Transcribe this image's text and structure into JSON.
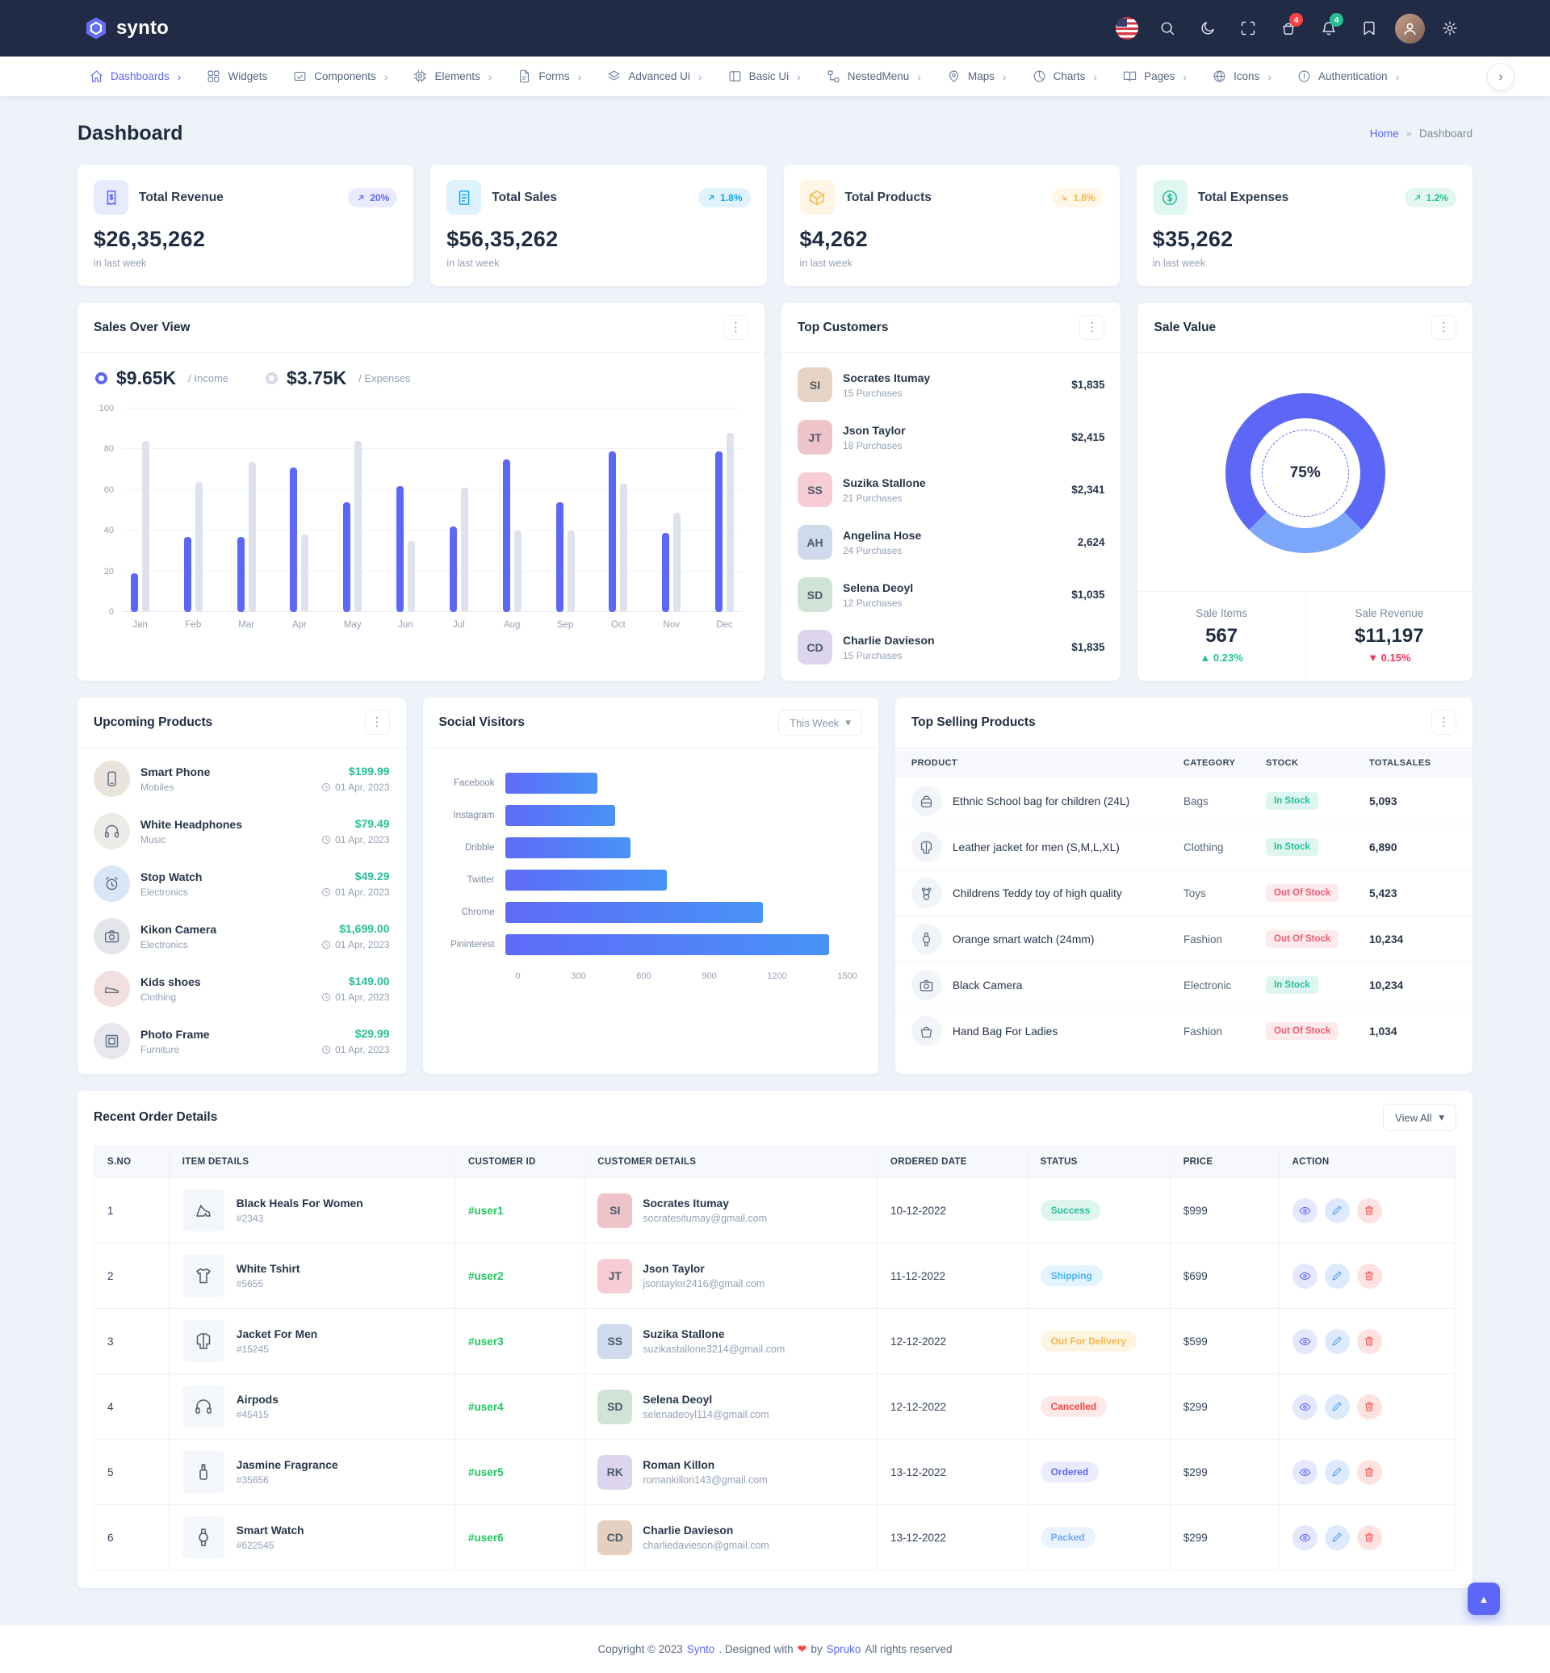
{
  "colors": {
    "primary": "#5c67f7",
    "secondary": "#0ea5e9",
    "warning": "#f5b849",
    "success": "#26bf94",
    "danger": "#fb4242",
    "income_bar": "#5c67f7",
    "expenses_bar": "#dde2ec",
    "topbar_bg": "#212b46",
    "cart_badge_bg": "#fb4242",
    "notif_badge_bg": "#26bf94"
  },
  "topbar": {
    "logo": "synto",
    "cart_badge": "4",
    "notification_badge": "4",
    "actions": [
      {
        "type": "flag",
        "name": "us-flag-icon"
      },
      {
        "type": "icon",
        "icon": "search",
        "name": "search-icon"
      },
      {
        "type": "icon",
        "icon": "moon",
        "name": "dark-mode-icon"
      },
      {
        "type": "icon",
        "icon": "fullscreen",
        "name": "fullscreen-icon"
      },
      {
        "type": "icon",
        "icon": "basket",
        "name": "cart-icon",
        "badge": "4",
        "badge_color": "#fb4242"
      },
      {
        "type": "icon",
        "icon": "bell",
        "name": "notifications-icon",
        "badge": "4",
        "badge_color": "#26bf94"
      },
      {
        "type": "icon",
        "icon": "bookmark",
        "name": "bookmark-icon"
      },
      {
        "type": "avatar",
        "name": "user-avatar"
      },
      {
        "type": "icon",
        "icon": "gear",
        "name": "settings-icon"
      }
    ]
  },
  "menu": {
    "items": [
      {
        "label": "Dashboards",
        "icon": "home",
        "chevron": true,
        "active": true
      },
      {
        "label": "Widgets",
        "icon": "widgets",
        "chevron": false,
        "active": false
      },
      {
        "label": "Components",
        "icon": "components",
        "chevron": true,
        "active": false
      },
      {
        "label": "Elements",
        "icon": "elements",
        "chevron": true,
        "active": false
      },
      {
        "label": "Forms",
        "icon": "forms",
        "chevron": true,
        "active": false
      },
      {
        "label": "Advanced Ui",
        "icon": "advanced",
        "chevron": true,
        "active": false
      },
      {
        "label": "Basic Ui",
        "icon": "basic",
        "chevron": true,
        "active": false
      },
      {
        "label": "NestedMenu",
        "icon": "nested",
        "chevron": true,
        "active": false
      },
      {
        "label": "Maps",
        "icon": "maps",
        "chevron": true,
        "active": false
      },
      {
        "label": "Charts",
        "icon": "charts",
        "chevron": true,
        "active": false
      },
      {
        "label": "Pages",
        "icon": "pages",
        "chevron": true,
        "active": false
      },
      {
        "label": "Icons",
        "icon": "iconsmenu",
        "chevron": true,
        "active": false
      },
      {
        "label": "Authentication",
        "icon": "auth",
        "chevron": true,
        "active": false
      }
    ]
  },
  "page": {
    "title": "Dashboard",
    "breadcrumb": [
      "Home",
      "Dashboard"
    ]
  },
  "stats": [
    {
      "title": "Total Revenue",
      "value": "$26,35,262",
      "note": "in last week",
      "badge": "20%",
      "trend": "up",
      "color": "#5c67f7",
      "icon": "receipt"
    },
    {
      "title": "Total Sales",
      "value": "$56,35,262",
      "note": "in last week",
      "badge": "1.8%",
      "trend": "up",
      "color": "#0ea5e9",
      "icon": "invoice"
    },
    {
      "title": "Total Products",
      "value": "$4,262",
      "note": "in last week",
      "badge": "1.8%",
      "trend": "down",
      "color": "#f5b849",
      "icon": "box"
    },
    {
      "title": "Total Expenses",
      "value": "$35,262",
      "note": "in last week",
      "badge": "1.2%",
      "trend": "up",
      "color": "#26bf94",
      "icon": "dollar"
    }
  ],
  "sales_overview": {
    "title": "Sales Over View",
    "legend": [
      {
        "value": "$9.65K",
        "label": "/ Income",
        "dot": "#5c67f7"
      },
      {
        "value": "$3.75K",
        "label": "/ Expenses",
        "dot": "#d4d9e4"
      }
    ],
    "chart_data": {
      "type": "bar",
      "categories": [
        "Jan",
        "Feb",
        "Mar",
        "Apr",
        "May",
        "Jun",
        "Jul",
        "Aug",
        "Sep",
        "Oct",
        "Nov",
        "Dec"
      ],
      "series": [
        {
          "name": "Income",
          "color": "#5c67f7",
          "values": [
            19,
            37,
            37,
            71,
            54,
            62,
            42,
            75,
            54,
            79,
            39,
            79
          ]
        },
        {
          "name": "Expenses",
          "color": "#dde2ec",
          "values": [
            84,
            64,
            74,
            38,
            84,
            35,
            61,
            40,
            40,
            63,
            49,
            88
          ]
        }
      ],
      "ylim": [
        0,
        100
      ],
      "yticks": [
        0,
        20,
        40,
        60,
        80,
        100
      ],
      "grid": true,
      "legend_position": "top"
    }
  },
  "top_customers": {
    "title": "Top Customers",
    "items": [
      {
        "name": "Socrates Itumay",
        "purchases": "15 Purchases",
        "amount": "$1,835"
      },
      {
        "name": "Json Taylor",
        "purchases": "18 Purchases",
        "amount": "$2,415"
      },
      {
        "name": "Suzika Stallone",
        "purchases": "21 Purchases",
        "amount": "$2,341"
      },
      {
        "name": "Angelina Hose",
        "purchases": "24 Purchases",
        "amount": "2,624"
      },
      {
        "name": "Selena Deoyl",
        "purchases": "12 Purchases",
        "amount": "$1,035"
      },
      {
        "name": "Charlie Davieson",
        "purchases": "15 Purchases",
        "amount": "$1,835"
      }
    ]
  },
  "sale_value": {
    "title": "Sale Value",
    "chart_data": {
      "type": "donut",
      "label": "75%",
      "value": 75,
      "segments": [
        {
          "name": "primary",
          "value": 75,
          "color": "#5c67f7"
        },
        {
          "name": "secondary",
          "value": 25,
          "color": "#7ba6f9"
        }
      ]
    },
    "stats": [
      {
        "label": "Sale Items",
        "value": "567",
        "delta": "0.23%",
        "direction": "up"
      },
      {
        "label": "Sale Revenue",
        "value": "$11,197",
        "delta": "0.15%",
        "direction": "down"
      }
    ]
  },
  "upcoming_products": {
    "title": "Upcoming Products",
    "items": [
      {
        "name": "Smart Phone",
        "category": "Mobiles",
        "price": "$199.99",
        "date": "01 Apr, 2023",
        "icon": "phone",
        "tint": "#e9e3dc"
      },
      {
        "name": "White Headphones",
        "category": "Music",
        "price": "$79.49",
        "date": "01 Apr, 2023",
        "icon": "headphones",
        "tint": "#edebe7"
      },
      {
        "name": "Stop Watch",
        "category": "Electronics",
        "price": "$49.29",
        "date": "01 Apr, 2023",
        "icon": "alarm",
        "tint": "#d8e6f8"
      },
      {
        "name": "Kikon Camera",
        "category": "Electronics",
        "price": "$1,699.00",
        "date": "01 Apr, 2023",
        "icon": "camera",
        "tint": "#e3e5e9"
      },
      {
        "name": "Kids shoes",
        "category": "Clothing",
        "price": "$149.00",
        "date": "01 Apr, 2023",
        "icon": "shoe",
        "tint": "#f2dfdf"
      },
      {
        "name": "Photo Frame",
        "category": "Furniture",
        "price": "$29.99",
        "date": "01 Apr, 2023",
        "icon": "frame",
        "tint": "#e8e7ee"
      }
    ]
  },
  "social_visitors": {
    "title": "Social Visitors",
    "range": "This Week",
    "chart_data": {
      "type": "bar",
      "orientation": "horizontal",
      "categories": [
        "Facebook",
        "Instagram",
        "Dribble",
        "Twitter",
        "Chrome",
        "Pininterest"
      ],
      "values": [
        395,
        470,
        535,
        690,
        1100,
        1380
      ],
      "xlim": [
        0,
        1500
      ],
      "xticks": [
        0,
        300,
        600,
        900,
        1200,
        1500
      ]
    }
  },
  "top_selling": {
    "title": "Top Selling Products",
    "headers": [
      "PRODUCT",
      "CATEGORY",
      "STOCK",
      "TOTALSALES"
    ],
    "rows": [
      {
        "product": "Ethnic School bag for children (24L)",
        "icon": "schoolbag",
        "category": "Bags",
        "stock": "In Stock",
        "total": "5,093"
      },
      {
        "product": "Leather jacket for men (S,M,L,XL)",
        "icon": "jacket",
        "category": "Clothing",
        "stock": "In Stock",
        "total": "6,890"
      },
      {
        "product": "Childrens Teddy toy of high quality",
        "icon": "teddy",
        "category": "Toys",
        "stock": "Out Of Stock",
        "total": "5,423"
      },
      {
        "product": "Orange smart watch (24mm)",
        "icon": "watch",
        "category": "Fashion",
        "stock": "Out Of Stock",
        "total": "10,234"
      },
      {
        "product": "Black Camera",
        "icon": "camera",
        "category": "Electronic",
        "stock": "In Stock",
        "total": "10,234"
      },
      {
        "product": "Hand Bag For Ladies",
        "icon": "handbag",
        "category": "Fashion",
        "stock": "Out Of Stock",
        "total": "1,034"
      }
    ]
  },
  "recent_orders": {
    "title": "Recent Order Details",
    "view_all": "View All",
    "headers": [
      "S.NO",
      "ITEM DETAILS",
      "CUSTOMER ID",
      "CUSTOMER DETAILS",
      "ORDERED DATE",
      "STATUS",
      "PRICE",
      "ACTION"
    ],
    "rows": [
      {
        "sno": "1",
        "item": "Black Heals For Women",
        "code": "#2343",
        "icon": "heels",
        "customer_id": "#user1",
        "customer": "Socrates Itumay",
        "email": "socratesitumay@gmail.com",
        "date": "10-12-2022",
        "status": "Success",
        "price": "$999"
      },
      {
        "sno": "2",
        "item": "White Tshirt",
        "code": "#5655",
        "icon": "tshirt",
        "customer_id": "#user2",
        "customer": "Json Taylor",
        "email": "jsontaylor2416@gmail.com",
        "date": "11-12-2022",
        "status": "Shipping",
        "price": "$699"
      },
      {
        "sno": "3",
        "item": "Jacket For Men",
        "code": "#15245",
        "icon": "jacket",
        "customer_id": "#user3",
        "customer": "Suzika Stallone",
        "email": "suzikastallone3214@gmail.com",
        "date": "12-12-2022",
        "status": "Out For Delivery",
        "price": "$599"
      },
      {
        "sno": "4",
        "item": "Airpods",
        "code": "#45415",
        "icon": "headphones",
        "customer_id": "#user4",
        "customer": "Selena Deoyl",
        "email": "selenadeoyl114@gmail.com",
        "date": "12-12-2022",
        "status": "Cancelled",
        "price": "$299"
      },
      {
        "sno": "5",
        "item": "Jasmine Fragrance",
        "code": "#35656",
        "icon": "perfume",
        "customer_id": "#user5",
        "customer": "Roman Killon",
        "email": "romankillon143@gmail.com",
        "date": "13-12-2022",
        "status": "Ordered",
        "price": "$299"
      },
      {
        "sno": "6",
        "item": "Smart Watch",
        "code": "#622545",
        "icon": "watch",
        "customer_id": "#user6",
        "customer": "Charlie Davieson",
        "email": "charliedavieson@gmail.com",
        "date": "13-12-2022",
        "status": "Packed",
        "price": "$299"
      }
    ]
  },
  "badge_styles": {
    "Success": {
      "text": "#26bf94",
      "bg": "rgba(38,191,148,0.15)"
    },
    "Shipping": {
      "text": "#49b6f5",
      "bg": "rgba(73,182,245,0.15)"
    },
    "Out For Delivery": {
      "text": "#f5b849",
      "bg": "rgba(245,184,73,0.16)"
    },
    "Cancelled": {
      "text": "#fb4242",
      "bg": "rgba(251,66,66,0.12)"
    },
    "Ordered": {
      "text": "#5c67f7",
      "bg": "rgba(92,103,247,0.13)"
    },
    "Packed": {
      "text": "#6fa8f5",
      "bg": "rgba(111,168,245,0.15)"
    },
    "In Stock": {
      "text": "#26bf94",
      "bg": "rgba(38,191,148,0.15)"
    },
    "Out Of Stock": {
      "text": "#ef5a6f",
      "bg": "rgba(239,90,111,0.13)"
    }
  },
  "footer": {
    "prefix": "Copyright © 2023",
    "brand": "Synto",
    "middle": ". Designed with",
    "heart": "❤",
    "by": "by",
    "designer": "Spruko",
    "suffix": "All rights reserved"
  }
}
